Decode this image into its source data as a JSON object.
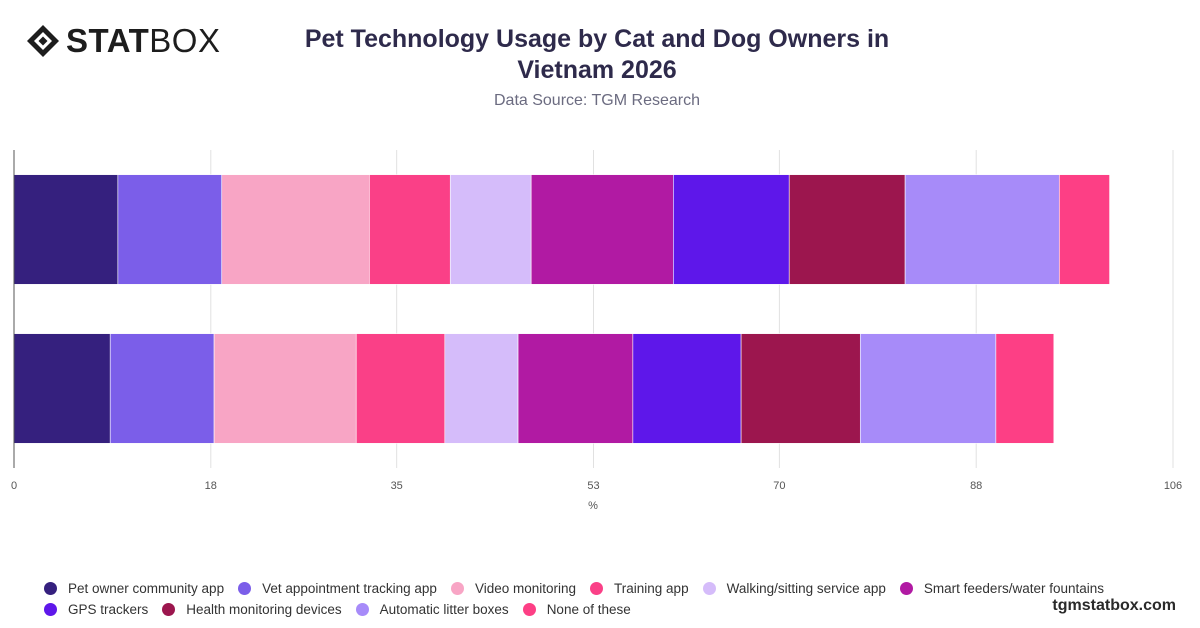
{
  "logo": {
    "bold": "STAT",
    "light": "BOX"
  },
  "footer_brand": "tgmstatbox.com",
  "chart_data": {
    "type": "bar",
    "orientation": "horizontal",
    "stacked": true,
    "title": "Pet Technology Usage by Cat and Dog Owners in Vietnam 2026",
    "subtitle": "Data Source: TGM Research",
    "xlabel": "%",
    "xlim": [
      0,
      106
    ],
    "x_ticks": [
      "0",
      "18",
      "35",
      "53",
      "70",
      "88",
      "106"
    ],
    "grid": true,
    "legend_position": "bottom",
    "categories": [
      "",
      ""
    ],
    "series": [
      {
        "name": "Pet owner community app",
        "color": "#35207e",
        "values": [
          9.5,
          8.8
        ]
      },
      {
        "name": "Vet appointment tracking app",
        "color": "#7b5ee9",
        "values": [
          9.5,
          9.5
        ]
      },
      {
        "name": "Video monitoring",
        "color": "#f8a5c5",
        "values": [
          13.5,
          13.0
        ]
      },
      {
        "name": "Training app",
        "color": "#fa4087",
        "values": [
          7.4,
          8.1
        ]
      },
      {
        "name": "Walking/sitting service app",
        "color": "#d5bcfa",
        "values": [
          7.4,
          6.7
        ]
      },
      {
        "name": "Smart feeders/water fountains",
        "color": "#b11aa3",
        "values": [
          13.0,
          10.5
        ]
      },
      {
        "name": "GPS trackers",
        "color": "#5e17ea",
        "values": [
          10.6,
          9.9
        ]
      },
      {
        "name": "Health monitoring devices",
        "color": "#9c164e",
        "values": [
          10.6,
          10.9
        ]
      },
      {
        "name": "Automatic litter boxes",
        "color": "#a78bf9",
        "values": [
          14.1,
          12.4
        ]
      },
      {
        "name": "None of these",
        "color": "#fd3f85",
        "values": [
          4.6,
          5.3
        ]
      }
    ]
  }
}
